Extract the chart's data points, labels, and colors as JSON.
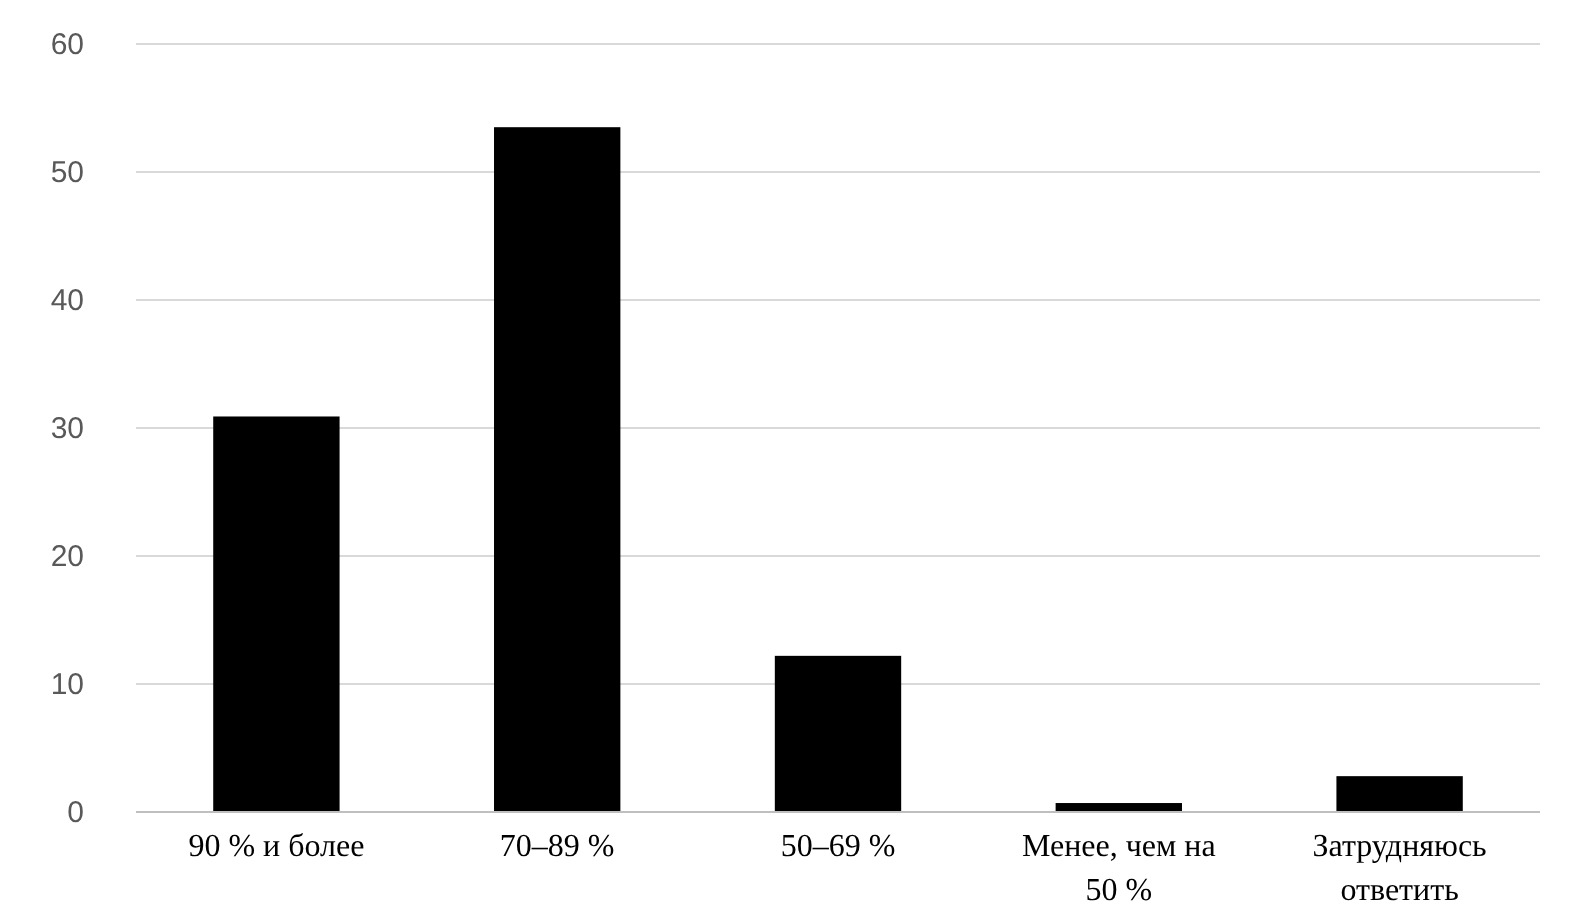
{
  "chart_data": {
    "type": "bar",
    "categories": [
      "90 % и более",
      "70–89 %",
      "50–69 %",
      "Менее, чем на 50 %",
      "Затрудняюсь ответить"
    ],
    "values": [
      30.9,
      53.5,
      12.2,
      0.7,
      2.8
    ],
    "color": "#000000",
    "ylim": [
      0,
      60
    ],
    "yticks": [
      0,
      10,
      20,
      30,
      40,
      50,
      60
    ],
    "grid": "y"
  }
}
